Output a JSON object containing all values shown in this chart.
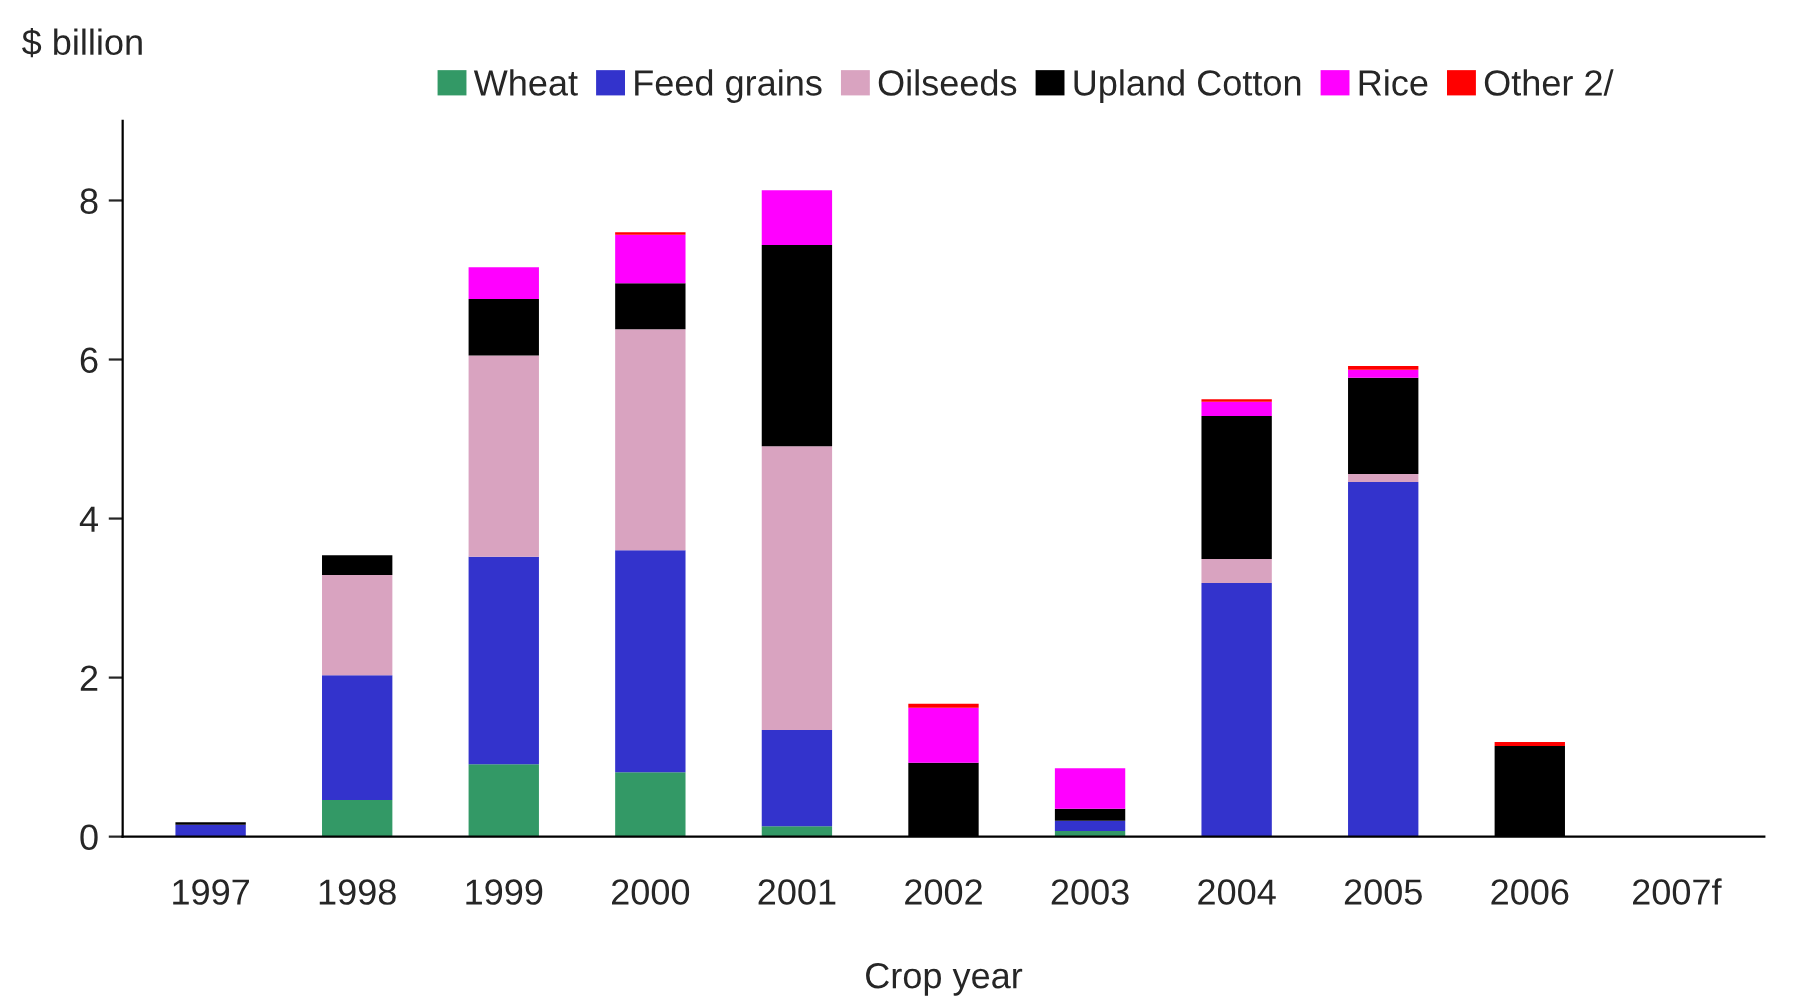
{
  "chart_data": {
    "type": "bar",
    "stacked": true,
    "ylabel": "$ billion",
    "xlabel": "Crop year",
    "categories": [
      "1997",
      "1998",
      "1999",
      "2000",
      "2001",
      "2002",
      "2003",
      "2004",
      "2005",
      "2006",
      "2007f"
    ],
    "series": [
      {
        "name": "Wheat",
        "color": "#339966",
        "values": [
          0,
          0.46,
          0.91,
          0.81,
          0.13,
          0,
          0.07,
          0,
          0,
          0,
          0
        ]
      },
      {
        "name": "Feed grains",
        "color": "#3333cc",
        "values": [
          0.15,
          1.57,
          2.61,
          2.79,
          1.21,
          0,
          0.13,
          3.19,
          4.46,
          0,
          0
        ]
      },
      {
        "name": "Oilseeds",
        "color": "#d9a3c0",
        "values": [
          0,
          1.26,
          2.53,
          2.78,
          3.57,
          0,
          0,
          0.3,
          0.1,
          0,
          0
        ]
      },
      {
        "name": "Upland Cotton",
        "color": "#000000",
        "values": [
          0.03,
          0.25,
          0.71,
          0.58,
          2.53,
          0.93,
          0.15,
          1.8,
          1.21,
          1.14,
          0
        ]
      },
      {
        "name": "Rice",
        "color": "#ff00ff",
        "values": [
          0,
          0,
          0.4,
          0.61,
          0.69,
          0.69,
          0.51,
          0.18,
          0.1,
          0,
          0
        ]
      },
      {
        "name": "Other 2/",
        "color": "#ff0000",
        "values": [
          0,
          0,
          0,
          0.03,
          0,
          0.05,
          0,
          0.03,
          0.05,
          0.05,
          0
        ]
      }
    ],
    "ylim": [
      0,
      9
    ],
    "yticks": [
      0,
      2,
      4,
      6,
      8
    ],
    "grid": false,
    "legend": "top"
  }
}
